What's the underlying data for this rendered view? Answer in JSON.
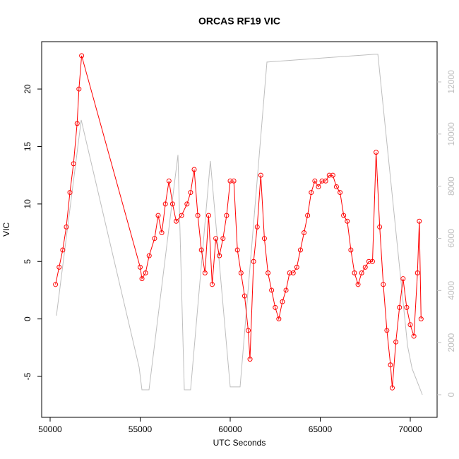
{
  "chart_data": {
    "type": "line",
    "title": "ORCAS RF19 VIC",
    "x_label": "UTC Seconds",
    "y_label": "VIC",
    "xlim": [
      49530,
      71490
    ],
    "ylim": [
      -8.56,
      24.12
    ],
    "y2lim": [
      -867,
      13544
    ],
    "xticks": [
      50000,
      55000,
      60000,
      65000,
      70000
    ],
    "yticks": [
      -5,
      0,
      5,
      10,
      15,
      20
    ],
    "y2ticks": [
      0,
      2000,
      4000,
      6000,
      8000,
      10000,
      12000
    ],
    "series": [
      {
        "color": "#ff0000",
        "markers": true,
        "x": [
          50300,
          50500,
          50700,
          50900,
          51100,
          51300,
          51500,
          51600,
          51750,
          55000,
          55100,
          55300,
          55500,
          55800,
          56000,
          56200,
          56400,
          56600,
          56800,
          57000,
          57300,
          57600,
          57800,
          58000,
          58200,
          58400,
          58600,
          58800,
          59000,
          59200,
          59400,
          59600,
          59800,
          60000,
          60200,
          60400,
          60600,
          60800,
          61000,
          61100,
          61300,
          61500,
          61700,
          61900,
          62100,
          62300,
          62500,
          62700,
          62900,
          63100,
          63300,
          63500,
          63700,
          63900,
          64100,
          64300,
          64500,
          64700,
          64900,
          65100,
          65300,
          65500,
          65700,
          65900,
          66100,
          66300,
          66500,
          66700,
          66900,
          67100,
          67300,
          67500,
          67700,
          67900,
          68100,
          68300,
          68500,
          68700,
          68900,
          69000,
          69200,
          69400,
          69600,
          69800,
          70000,
          70200,
          70400,
          70500,
          70600
        ],
        "values": [
          3,
          4.5,
          6,
          8,
          11,
          13.5,
          17,
          20,
          22.9,
          4.5,
          3.5,
          4,
          5.5,
          7,
          9,
          7.5,
          10,
          12,
          10,
          8.5,
          9,
          10,
          11,
          13,
          9,
          6,
          4,
          9,
          3,
          7,
          5.5,
          7,
          9,
          12,
          12,
          6,
          4,
          2,
          -1,
          -3.5,
          5,
          8,
          12.5,
          7,
          4,
          2.5,
          1,
          0,
          1.5,
          2.5,
          4,
          4,
          4.5,
          6,
          7.5,
          9,
          11,
          12,
          11.5,
          12,
          12,
          12.5,
          12.5,
          11.5,
          11,
          9,
          8.5,
          6,
          4,
          3,
          4,
          4.5,
          5,
          5,
          14.5,
          8,
          3,
          -1,
          -4,
          -6,
          -2,
          1,
          3.5,
          1,
          -0.5,
          -1.5,
          4,
          8.5,
          0
        ]
      },
      {
        "color": "#bebebe",
        "axis": "y2",
        "markers": false,
        "x": [
          50350,
          51725,
          54940,
          55100,
          55490,
          57100,
          57450,
          57800,
          58900,
          60000,
          60550,
          62040,
          68000,
          68200,
          69850,
          70100,
          70670
        ],
        "values": [
          3035,
          10540,
          1057,
          190,
          190,
          9200,
          190,
          190,
          8970,
          300,
          300,
          12760,
          13060,
          13060,
          1870,
          1000,
          0
        ]
      }
    ]
  }
}
